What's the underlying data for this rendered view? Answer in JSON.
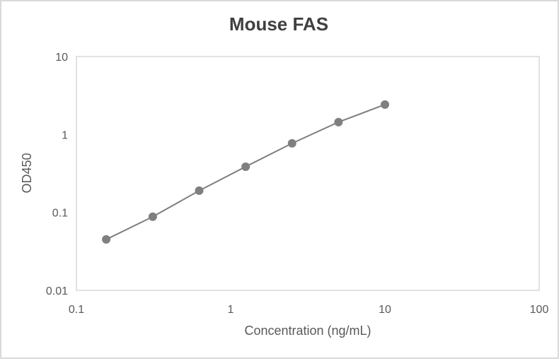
{
  "chart_data": {
    "type": "scatter",
    "title": "Mouse FAS",
    "xlabel": "Concentration (ng/mL)",
    "ylabel": "OD450",
    "xscale": "log",
    "yscale": "log",
    "xlim": [
      0.1,
      100
    ],
    "ylim": [
      0.01,
      10
    ],
    "xticks": [
      "0.1",
      "1",
      "10",
      "100"
    ],
    "yticks": [
      "10",
      "1",
      "0.1",
      "0.01"
    ],
    "grid": false,
    "legend": null,
    "series": [
      {
        "name": "Mouse FAS",
        "color": "#7f7f7f",
        "x": [
          0.156,
          0.3125,
          0.625,
          1.25,
          2.5,
          5,
          10
        ],
        "y": [
          0.045,
          0.088,
          0.19,
          0.386,
          0.77,
          1.44,
          2.42
        ]
      }
    ]
  }
}
